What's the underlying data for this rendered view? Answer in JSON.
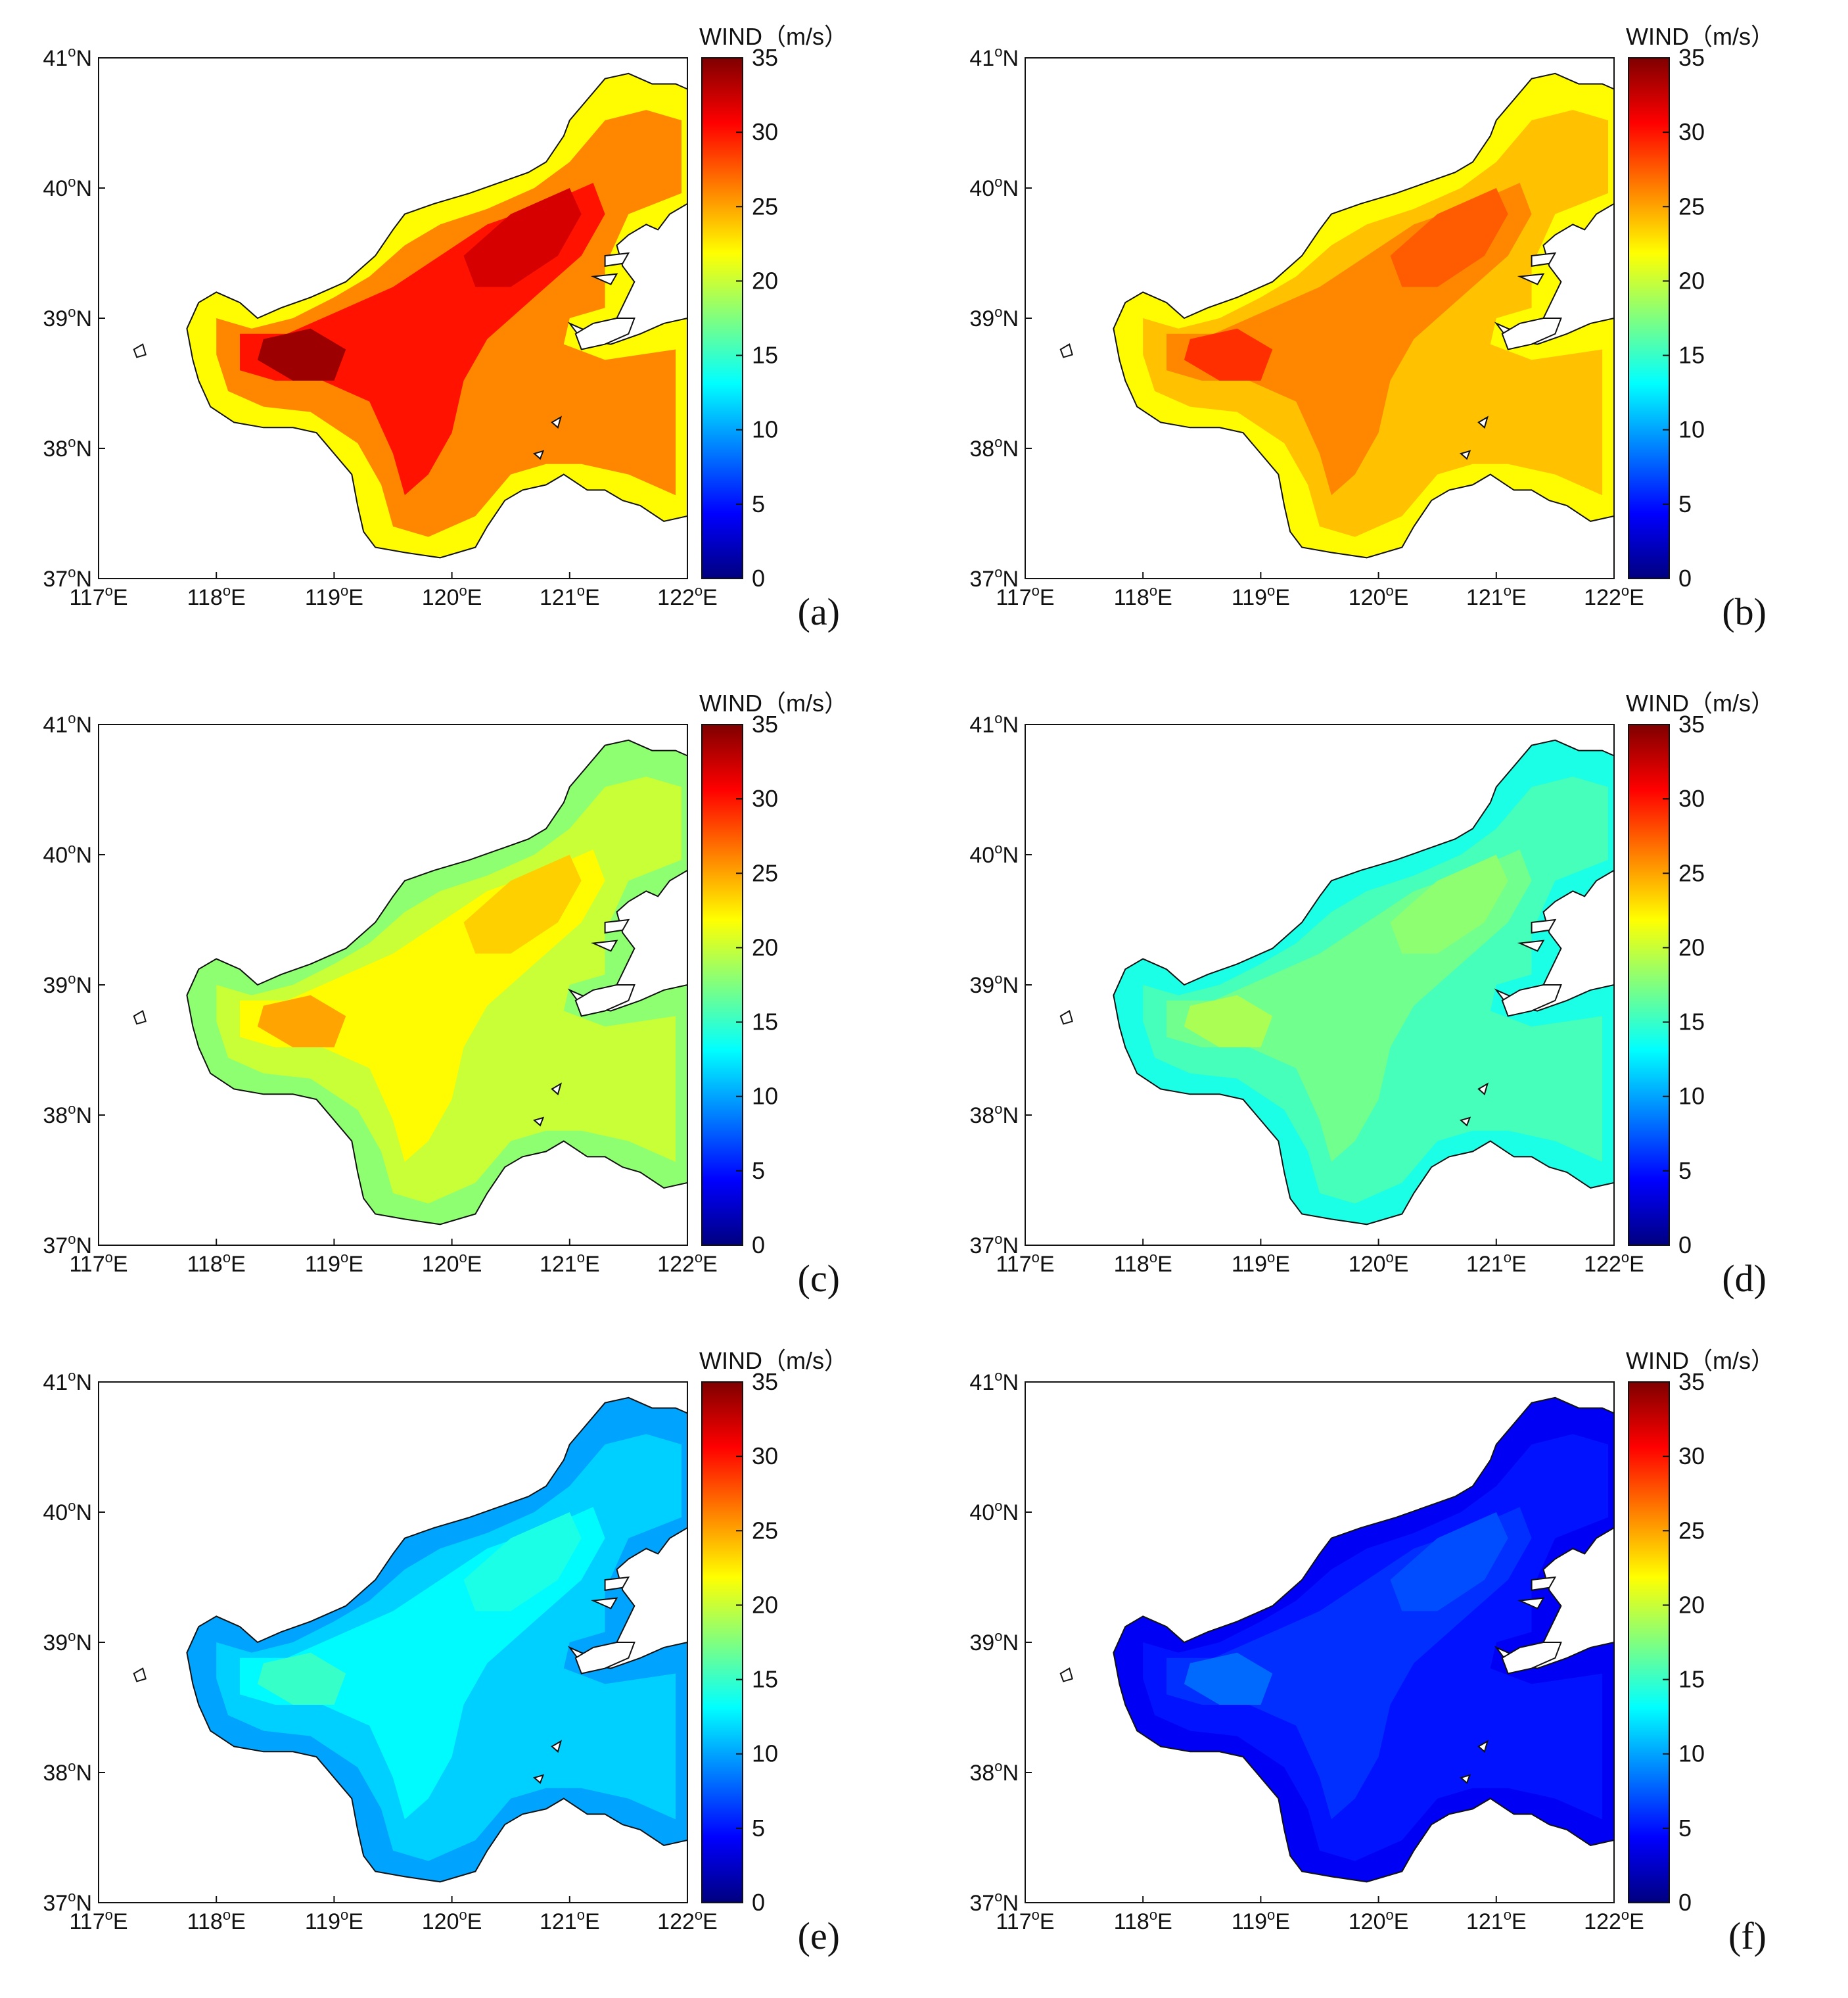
{
  "figure": {
    "colorbar_title": "WIND（m/s）",
    "colorbar_ticks": [
      "0",
      "5",
      "10",
      "15",
      "20",
      "25",
      "30",
      "35"
    ],
    "colorbar_range": [
      0,
      35
    ],
    "colormap": "jet",
    "lat_ticks": [
      "37",
      "38",
      "39",
      "40",
      "41"
    ],
    "lon_ticks": [
      "117",
      "118",
      "119",
      "120",
      "121",
      "122"
    ],
    "lat_suffix": "N",
    "lon_suffix": "E",
    "degree_symbol": "o"
  },
  "panels": [
    {
      "label": "(a)",
      "peak_wind": 34,
      "base_wind": 30,
      "coast_wind": 22
    },
    {
      "label": "(b)",
      "peak_wind": 29,
      "base_wind": 26,
      "coast_wind": 22
    },
    {
      "label": "(c)",
      "peak_wind": 25,
      "base_wind": 22,
      "coast_wind": 18
    },
    {
      "label": "(d)",
      "peak_wind": 19,
      "base_wind": 17,
      "coast_wind": 14
    },
    {
      "label": "(e)",
      "peak_wind": 15,
      "base_wind": 13,
      "coast_wind": 10
    },
    {
      "label": "(f)",
      "peak_wind": 8,
      "base_wind": 6,
      "coast_wind": 4
    }
  ]
}
